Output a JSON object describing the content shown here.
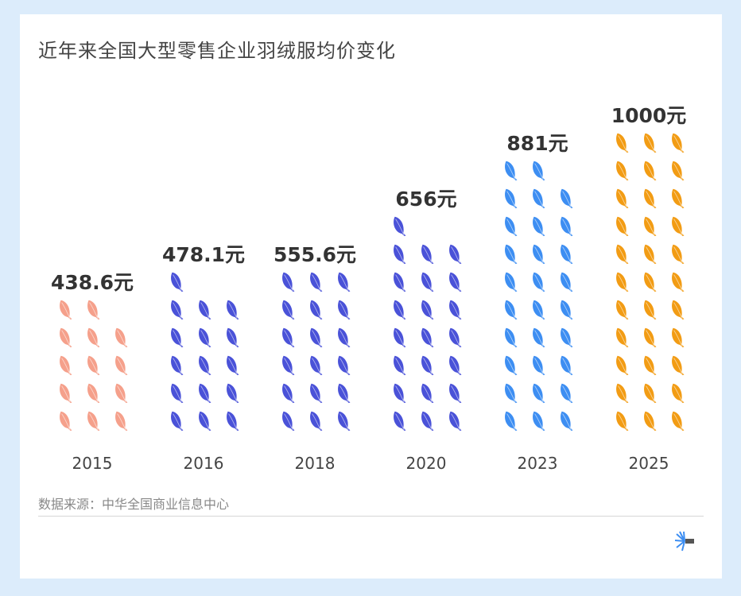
{
  "title": "近年来全国大型零售企业羽绒服均价变化",
  "source": "数据来源：中华全国商业信息中心",
  "chart_data": {
    "type": "pictogram",
    "title": "近年来全国大型零售企业羽绒服均价变化",
    "unit": "元",
    "icon": "feather",
    "yuan_per_icon": 30,
    "categories": [
      "2015",
      "2016",
      "2018",
      "2020",
      "2023",
      "2025"
    ],
    "values": [
      438.6,
      478.1,
      555.6,
      656,
      881,
      1000
    ],
    "labels": [
      "438.6元",
      "478.1元",
      "555.6元",
      "656元",
      "881元",
      "1000元"
    ],
    "icon_counts": [
      14,
      16,
      18,
      22,
      29,
      33
    ],
    "colors": [
      "#f5a08b",
      "#4a52d8",
      "#4a52d8",
      "#4a52d8",
      "#3d8ef2",
      "#f29c14"
    ]
  }
}
